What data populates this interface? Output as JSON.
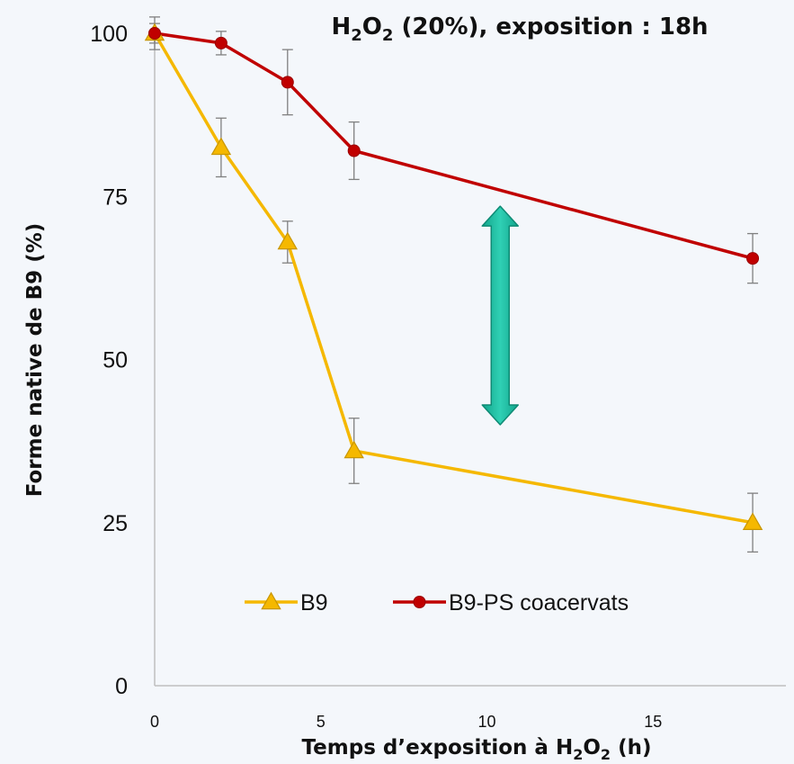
{
  "chart_data": {
    "type": "line",
    "title": {
      "segments": [
        {
          "text": "H",
          "sub": false
        },
        {
          "text": "2",
          "sub": true
        },
        {
          "text": "O",
          "sub": false
        },
        {
          "text": "2",
          "sub": true
        },
        {
          "text": " (20%), exposition : 18h",
          "sub": false
        }
      ]
    },
    "xlabel": {
      "segments": [
        {
          "text": "Temps d’exposition à H",
          "sub": false
        },
        {
          "text": "2",
          "sub": true
        },
        {
          "text": "O",
          "sub": false
        },
        {
          "text": "2",
          "sub": true
        },
        {
          "text": " (h)",
          "sub": false
        }
      ]
    },
    "ylabel": "Forme native de B9 (%)",
    "xlim": [
      0,
      19
    ],
    "ylim": [
      0,
      100
    ],
    "xticks": [
      0,
      5,
      10,
      15
    ],
    "yticks": [
      0,
      25,
      50,
      75,
      100
    ],
    "grid": false,
    "legend_position": "lower-center",
    "series": [
      {
        "name": "B9",
        "color": "#f5b800",
        "marker": "triangle",
        "x": [
          0,
          2,
          4,
          6,
          18
        ],
        "y": [
          100,
          82.5,
          68,
          36,
          25
        ],
        "error": [
          2.5,
          4.5,
          3.2,
          5.0,
          4.5
        ]
      },
      {
        "name": "B9-PS coacervats",
        "color": "#c00000",
        "marker": "circle",
        "x": [
          0,
          2,
          4,
          6,
          18
        ],
        "y": [
          100,
          98.5,
          92.5,
          82,
          65.5
        ],
        "error": [
          1.5,
          1.8,
          5.0,
          4.4,
          3.8
        ]
      }
    ],
    "annotations": [
      {
        "type": "double-arrow",
        "color": "#1abc9c",
        "x": 10.4,
        "y_from": 40,
        "y_to": 73.5
      }
    ]
  }
}
